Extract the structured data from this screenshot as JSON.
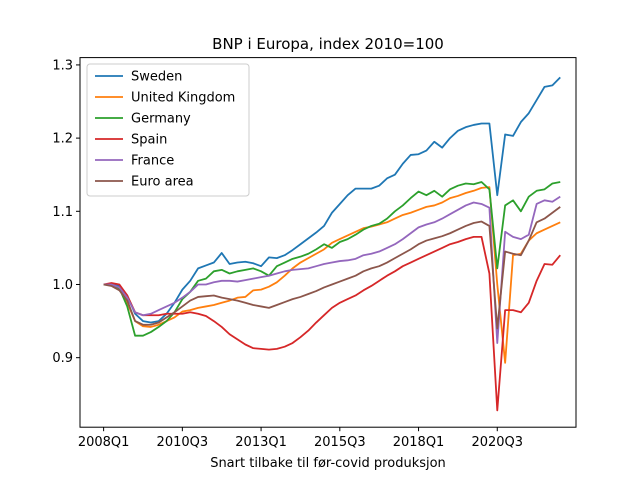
{
  "chart_data": {
    "type": "line",
    "title": "BNP i Europa, index 2010=100",
    "xlabel": "Snart tilbake til før-covid produksjon",
    "ylabel": "",
    "x_tick_labels": [
      "2008Q1",
      "2010Q3",
      "2013Q1",
      "2015Q3",
      "2018Q1",
      "2020Q3"
    ],
    "x_tick_positions": [
      0,
      10,
      20,
      30,
      40,
      50
    ],
    "x_range": [
      -3,
      60
    ],
    "y_ticks": [
      0.9,
      1.0,
      1.1,
      1.2,
      1.3
    ],
    "y_tick_labels": [
      "0.9",
      "1.0",
      "1.1",
      "1.2",
      "1.3"
    ],
    "ylim": [
      0.805,
      1.31
    ],
    "grid": false,
    "legend_placement": "top-left",
    "series": [
      {
        "name": "Sweden",
        "color": "#1f77b4",
        "values": [
          1.0,
          1.0,
          0.998,
          0.985,
          0.96,
          0.95,
          0.948,
          0.95,
          0.96,
          0.975,
          0.993,
          1.005,
          1.022,
          1.026,
          1.03,
          1.043,
          1.028,
          1.03,
          1.031,
          1.029,
          1.025,
          1.037,
          1.036,
          1.04,
          1.047,
          1.055,
          1.063,
          1.071,
          1.08,
          1.098,
          1.11,
          1.122,
          1.131,
          1.131,
          1.131,
          1.135,
          1.145,
          1.15,
          1.165,
          1.177,
          1.178,
          1.183,
          1.195,
          1.187,
          1.2,
          1.21,
          1.215,
          1.218,
          1.22,
          1.22,
          1.122,
          1.205,
          1.203,
          1.222,
          1.234,
          1.252,
          1.27,
          1.272,
          1.283
        ]
      },
      {
        "name": "United Kingdom",
        "color": "#ff7f0e",
        "values": [
          1.0,
          1.0,
          0.995,
          0.975,
          0.95,
          0.943,
          0.942,
          0.945,
          0.95,
          0.955,
          0.963,
          0.965,
          0.968,
          0.97,
          0.972,
          0.975,
          0.978,
          0.982,
          0.983,
          0.992,
          0.993,
          0.997,
          1.003,
          1.012,
          1.022,
          1.03,
          1.036,
          1.042,
          1.048,
          1.057,
          1.062,
          1.067,
          1.072,
          1.077,
          1.079,
          1.082,
          1.085,
          1.09,
          1.095,
          1.098,
          1.102,
          1.106,
          1.108,
          1.112,
          1.118,
          1.121,
          1.125,
          1.128,
          1.132,
          1.133,
          1.0,
          0.893,
          1.04,
          1.042,
          1.06,
          1.07,
          1.075,
          1.08,
          1.085
        ]
      },
      {
        "name": "Germany",
        "color": "#2ca02c",
        "values": [
          1.0,
          1.0,
          0.995,
          0.97,
          0.93,
          0.93,
          0.935,
          0.942,
          0.95,
          0.962,
          0.98,
          0.99,
          1.005,
          1.008,
          1.018,
          1.02,
          1.015,
          1.018,
          1.02,
          1.022,
          1.018,
          1.012,
          1.025,
          1.03,
          1.035,
          1.038,
          1.042,
          1.048,
          1.055,
          1.05,
          1.058,
          1.062,
          1.068,
          1.075,
          1.08,
          1.083,
          1.09,
          1.1,
          1.108,
          1.118,
          1.127,
          1.122,
          1.128,
          1.12,
          1.13,
          1.135,
          1.138,
          1.137,
          1.14,
          1.13,
          1.022,
          1.108,
          1.115,
          1.1,
          1.12,
          1.128,
          1.13,
          1.138,
          1.14
        ]
      },
      {
        "name": "Spain",
        "color": "#d62728",
        "values": [
          1.0,
          1.002,
          1.0,
          0.985,
          0.962,
          0.958,
          0.958,
          0.958,
          0.96,
          0.96,
          0.96,
          0.962,
          0.96,
          0.957,
          0.95,
          0.942,
          0.932,
          0.925,
          0.918,
          0.913,
          0.912,
          0.911,
          0.912,
          0.915,
          0.92,
          0.928,
          0.937,
          0.948,
          0.958,
          0.968,
          0.975,
          0.98,
          0.985,
          0.992,
          0.998,
          1.005,
          1.012,
          1.018,
          1.025,
          1.03,
          1.035,
          1.04,
          1.045,
          1.05,
          1.055,
          1.058,
          1.062,
          1.065,
          1.065,
          1.015,
          0.828,
          0.965,
          0.965,
          0.962,
          0.975,
          1.005,
          1.028,
          1.027,
          1.04
        ]
      },
      {
        "name": "France",
        "color": "#9467bd",
        "values": [
          1.0,
          1.0,
          0.996,
          0.982,
          0.962,
          0.958,
          0.96,
          0.965,
          0.97,
          0.975,
          0.982,
          0.99,
          1.0,
          1.0,
          1.003,
          1.005,
          1.005,
          1.004,
          1.006,
          1.008,
          1.01,
          1.012,
          1.015,
          1.018,
          1.02,
          1.021,
          1.022,
          1.025,
          1.028,
          1.03,
          1.032,
          1.033,
          1.035,
          1.04,
          1.042,
          1.045,
          1.05,
          1.055,
          1.062,
          1.07,
          1.078,
          1.082,
          1.085,
          1.09,
          1.096,
          1.102,
          1.108,
          1.112,
          1.11,
          1.105,
          0.92,
          1.072,
          1.065,
          1.062,
          1.068,
          1.11,
          1.115,
          1.113,
          1.12
        ]
      },
      {
        "name": "Euro area",
        "color": "#8c564b",
        "values": [
          1.0,
          0.998,
          0.992,
          0.978,
          0.95,
          0.945,
          0.945,
          0.948,
          0.955,
          0.962,
          0.97,
          0.978,
          0.983,
          0.984,
          0.985,
          0.982,
          0.98,
          0.978,
          0.975,
          0.972,
          0.97,
          0.968,
          0.972,
          0.976,
          0.98,
          0.983,
          0.987,
          0.991,
          0.996,
          1.0,
          1.004,
          1.008,
          1.012,
          1.018,
          1.022,
          1.025,
          1.03,
          1.036,
          1.042,
          1.048,
          1.055,
          1.06,
          1.063,
          1.066,
          1.07,
          1.075,
          1.08,
          1.084,
          1.086,
          1.08,
          0.94,
          1.045,
          1.042,
          1.04,
          1.06,
          1.085,
          1.09,
          1.098,
          1.106
        ]
      }
    ]
  }
}
